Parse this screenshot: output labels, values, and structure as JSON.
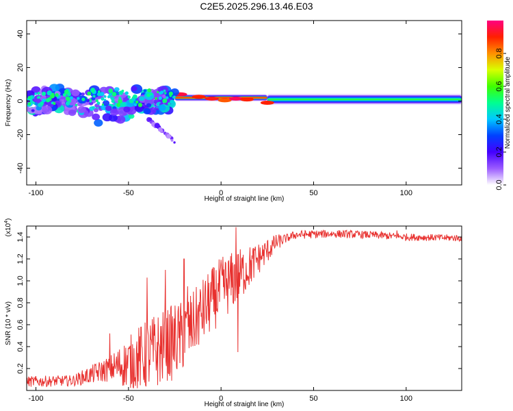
{
  "title": "C2E5.2025.296.13.46.E03",
  "colors": {
    "snr_line": "#e8302e",
    "axis": "#000000"
  },
  "chart_data": [
    {
      "type": "heatmap",
      "name": "spectrogram",
      "xlabel": "Height of straight line (km)",
      "ylabel": "Frequency (Hz)",
      "xlim": [
        -105,
        130
      ],
      "ylim": [
        -50,
        48
      ],
      "xticks": [
        -100,
        -50,
        0,
        50,
        100
      ],
      "yticks": [
        -40,
        -20,
        0,
        20,
        40
      ],
      "colorbar": {
        "label": "Normalized spectral amplitude",
        "range": [
          0,
          1
        ],
        "ticks": [
          "0.0",
          "0.2",
          "0.4",
          "0.6",
          "0.8"
        ],
        "tick_values": [
          0.0,
          0.2,
          0.4,
          0.6,
          0.8
        ],
        "colormap": [
          "#ffffff",
          "#9b5cff",
          "#4400ff",
          "#0040ff",
          "#00c8ff",
          "#00ff90",
          "#40ff00",
          "#d8ff00",
          "#ff9000",
          "#ff2000",
          "#ff0080"
        ]
      },
      "description_of_content": "narrow band near 0 Hz, scattered strong blobs from -105 to -25 km, steady band beyond 25 km",
      "band_segments": [
        {
          "x": [
            -105,
            -25
          ],
          "center_hz": 3,
          "spread_hz": 7,
          "amplitude": 0.35
        },
        {
          "x": [
            -25,
            25
          ],
          "center_hz": 2,
          "spread_hz": 2,
          "amplitude": 0.9
        },
        {
          "x": [
            25,
            130
          ],
          "center_hz": 1,
          "spread_hz": 3,
          "amplitude": 0.55
        }
      ],
      "tail": {
        "x": [
          -40,
          -25
        ],
        "hz": [
          -10,
          -24
        ]
      }
    },
    {
      "type": "line",
      "name": "snr",
      "xlabel": "Height of straight line (km)",
      "ylabel": "SNR (10 * v/v)",
      "exponent_label": "(x10^4)",
      "exponent_main": "(x10",
      "exponent_power": "4",
      "exponent_close": ")",
      "xlim": [
        -105,
        130
      ],
      "ylim": [
        0.0,
        1.5
      ],
      "xticks": [
        -100,
        -50,
        0,
        50,
        100
      ],
      "yticks": [
        0.2,
        0.4,
        0.6,
        0.8,
        1.0,
        1.2,
        1.4
      ],
      "ytick_labels": [
        "0.2",
        "0.4",
        "0.6",
        "0.8",
        "1.0",
        "1.2",
        "1.4"
      ],
      "baseline_points": [
        [
          -105,
          0.08
        ],
        [
          -80,
          0.09
        ],
        [
          -60,
          0.2
        ],
        [
          -50,
          0.25
        ],
        [
          -40,
          0.32
        ],
        [
          -30,
          0.4
        ],
        [
          -20,
          0.5
        ],
        [
          -10,
          0.72
        ],
        [
          0,
          0.92
        ],
        [
          10,
          1.05
        ],
        [
          20,
          1.2
        ],
        [
          30,
          1.35
        ],
        [
          40,
          1.42
        ],
        [
          60,
          1.43
        ],
        [
          80,
          1.42
        ],
        [
          100,
          1.4
        ],
        [
          130,
          1.39
        ]
      ],
      "noise_points": [
        [
          -105,
          0.05
        ],
        [
          -80,
          0.05
        ],
        [
          -60,
          0.12
        ],
        [
          -45,
          0.3
        ],
        [
          -35,
          0.35
        ],
        [
          -25,
          0.35
        ],
        [
          -15,
          0.3
        ],
        [
          0,
          0.3
        ],
        [
          10,
          0.25
        ],
        [
          20,
          0.15
        ],
        [
          35,
          0.04
        ],
        [
          130,
          0.03
        ]
      ],
      "spikes": [
        [
          -60,
          0.52
        ],
        [
          -40,
          1.03
        ],
        [
          -30,
          1.1
        ],
        [
          -20,
          1.2
        ],
        [
          -18,
          0.95
        ],
        [
          8,
          1.49
        ],
        [
          9,
          0.35
        ],
        [
          95,
          1.46
        ]
      ]
    }
  ]
}
